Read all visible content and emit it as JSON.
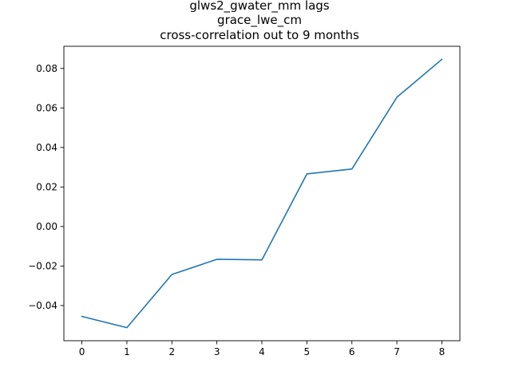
{
  "chart_data": {
    "type": "line",
    "title_lines": [
      "glws2_gwater_mm lags",
      "grace_lwe_cm",
      "cross-correlation out to 9 months"
    ],
    "xlabel": "",
    "ylabel": "",
    "x": [
      0,
      1,
      2,
      3,
      4,
      5,
      6,
      7,
      8
    ],
    "series": [
      {
        "values": [
          -0.0455,
          -0.0512,
          -0.0243,
          -0.0166,
          -0.0169,
          0.0266,
          0.0291,
          0.0654,
          0.0846
        ],
        "color": "#1f77b4"
      }
    ],
    "xlim": [
      -0.4,
      8.4
    ],
    "ylim": [
      -0.0578,
      0.0912
    ],
    "xticks": [
      0,
      1,
      2,
      3,
      4,
      5,
      6,
      7,
      8
    ],
    "xtick_labels": [
      "0",
      "1",
      "2",
      "3",
      "4",
      "5",
      "6",
      "7",
      "8"
    ],
    "yticks": [
      -0.04,
      -0.02,
      0.0,
      0.02,
      0.04,
      0.06,
      0.08
    ],
    "ytick_labels": [
      "−0.04",
      "−0.02",
      "0.00",
      "0.02",
      "0.04",
      "0.06",
      "0.08"
    ],
    "grid": false
  }
}
